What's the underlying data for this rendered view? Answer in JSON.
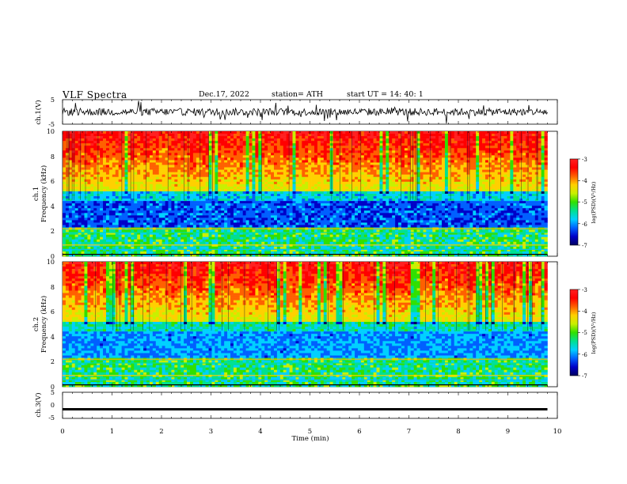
{
  "header": {
    "title": "VLF  Spectra",
    "date": "Dec.17, 2022",
    "station": "station= ATH",
    "start_ut": "start  UT  =     14: 40: 1"
  },
  "chart_data": [
    {
      "type": "line",
      "panel": "ch1-waveform",
      "ylabel": "ch.1(V)",
      "ylim": [
        -5,
        5
      ],
      "yticks": [
        "5",
        "-5"
      ],
      "xlim": [
        0,
        10
      ],
      "series": [
        {
          "values_description_free": true,
          "color": "#000000"
        }
      ]
    },
    {
      "type": "heatmap",
      "panel": "ch1-spectrogram",
      "ylabel_lines": [
        "ch.1",
        "Frequency (kHz)"
      ],
      "ylim": [
        0,
        10
      ],
      "yticks": [
        "0",
        "2",
        "4",
        "6",
        "8",
        "10"
      ],
      "xlim": [
        0,
        10
      ],
      "colorbar": {
        "label": "log(PSD)(V²/Hz)",
        "range": [
          -7,
          -3
        ],
        "ticks": [
          "-3",
          "-4",
          "-5",
          "-6",
          "-7"
        ]
      }
    },
    {
      "type": "heatmap",
      "panel": "ch2-spectrogram",
      "ylabel_lines": [
        "ch.2",
        "Frequency (kHz)"
      ],
      "ylim": [
        0,
        10
      ],
      "yticks": [
        "0",
        "2",
        "4",
        "6",
        "8",
        "10"
      ],
      "xlim": [
        0,
        10
      ],
      "colorbar": {
        "label": "log(PSD)(V²/Hz)",
        "range": [
          -7,
          -3
        ],
        "ticks": [
          "-3",
          "-4",
          "-5",
          "-6",
          "-7"
        ]
      }
    },
    {
      "type": "line",
      "panel": "ch3-waveform",
      "ylabel": "ch.3(V)",
      "ylim": [
        -5,
        5
      ],
      "yticks": [
        "5",
        "0",
        "-5"
      ],
      "xlim": [
        0,
        10
      ],
      "constant_level": -1.5
    }
  ],
  "xaxis": {
    "label": "Time  (min)",
    "ticks": [
      "0",
      "1",
      "2",
      "3",
      "4",
      "5",
      "6",
      "7",
      "8",
      "9",
      "10"
    ],
    "data_end": 9.8
  },
  "colors": {
    "colormap": [
      "#000060",
      "#0000c8",
      "#0060ff",
      "#00d0ff",
      "#00e090",
      "#30e000",
      "#c8f000",
      "#ffd000",
      "#ff6000",
      "#ff0000",
      "#ff2020"
    ]
  }
}
